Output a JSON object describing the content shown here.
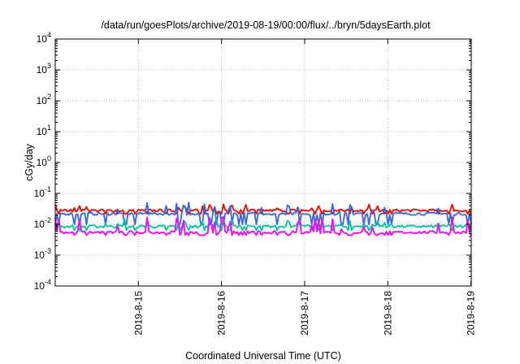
{
  "chart_data": {
    "type": "line",
    "title": "/data/run/goesPlots/archive/2019-08-19/00:00/flux/../bryn/5daysEarth.plot",
    "xlabel": "Coordinated Universal Time (UTC)",
    "ylabel": "cGy/day",
    "y_scale": "log",
    "ylim": [
      0.0001,
      10000
    ],
    "xlim": [
      "2019-08-14T00:00",
      "2019-08-19T00:05"
    ],
    "grid": true,
    "y_ticks": [
      {
        "mantissa": "10",
        "exp": "-4",
        "value": 0.0001
      },
      {
        "mantissa": "10",
        "exp": "-3",
        "value": 0.001
      },
      {
        "mantissa": "10",
        "exp": "-2",
        "value": 0.01
      },
      {
        "mantissa": "10",
        "exp": "-1",
        "value": 0.1
      },
      {
        "mantissa": "10",
        "exp": "0",
        "value": 1
      },
      {
        "mantissa": "10",
        "exp": "1",
        "value": 10
      },
      {
        "mantissa": "10",
        "exp": "2",
        "value": 100
      },
      {
        "mantissa": "10",
        "exp": "3",
        "value": 1000
      },
      {
        "mantissa": "10",
        "exp": "4",
        "value": 10000
      }
    ],
    "x_ticks": [
      {
        "label": "2019-8-15",
        "value": "2019-08-15T00:00"
      },
      {
        "label": "2019-8-16",
        "value": "2019-08-16T00:00"
      },
      {
        "label": "2019-8-17",
        "value": "2019-08-17T00:00"
      },
      {
        "label": "2019-8-18",
        "value": "2019-08-18T00:00"
      },
      {
        "label": "2019-8-19",
        "value": "2019-08-19T00:00"
      }
    ],
    "series": [
      {
        "color": "#ff0000",
        "baseline": 0.028,
        "spike_factor": 1.6,
        "dip_factor": 0.78
      },
      {
        "color": "#3366dd",
        "baseline": 0.022,
        "spike_factor": 2.4,
        "dip_factor": 0.45
      },
      {
        "color": "#00c0a0",
        "baseline": 0.0085,
        "spike_factor": 1.8,
        "dip_factor": 0.75
      },
      {
        "color": "#ff00ff",
        "baseline": 0.0055,
        "spike_factor": 3.2,
        "dip_factor": 0.8
      }
    ]
  }
}
